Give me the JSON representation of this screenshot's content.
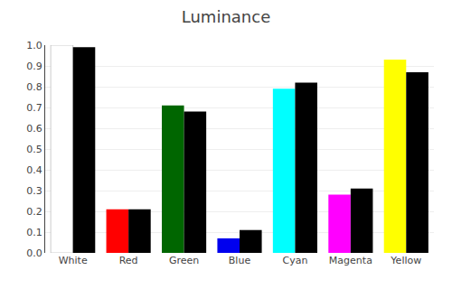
{
  "chart_data": {
    "type": "bar",
    "title": "Luminance",
    "categories": [
      "White",
      "Red",
      "Green",
      "Blue",
      "Cyan",
      "Magenta",
      "Yellow"
    ],
    "series": [
      {
        "colors": [
          "#ffffff",
          "#ff0000",
          "#006600",
          "#0000ee",
          "#00ffff",
          "#ff00ff",
          "#ffff00"
        ],
        "values": [
          1.0,
          0.21,
          0.71,
          0.07,
          0.79,
          0.28,
          0.93
        ]
      },
      {
        "color": "#000000",
        "values": [
          0.99,
          0.21,
          0.68,
          0.11,
          0.82,
          0.31,
          0.87
        ]
      }
    ],
    "ylim": [
      0,
      1
    ],
    "yticks": [
      {
        "value": 0,
        "label": "0.0"
      },
      0.1,
      0.2,
      0.3,
      0.4,
      0.5,
      0.6,
      0.7,
      0.8,
      0.9,
      {
        "value": 1,
        "label": "1.0"
      }
    ],
    "grid": true
  }
}
